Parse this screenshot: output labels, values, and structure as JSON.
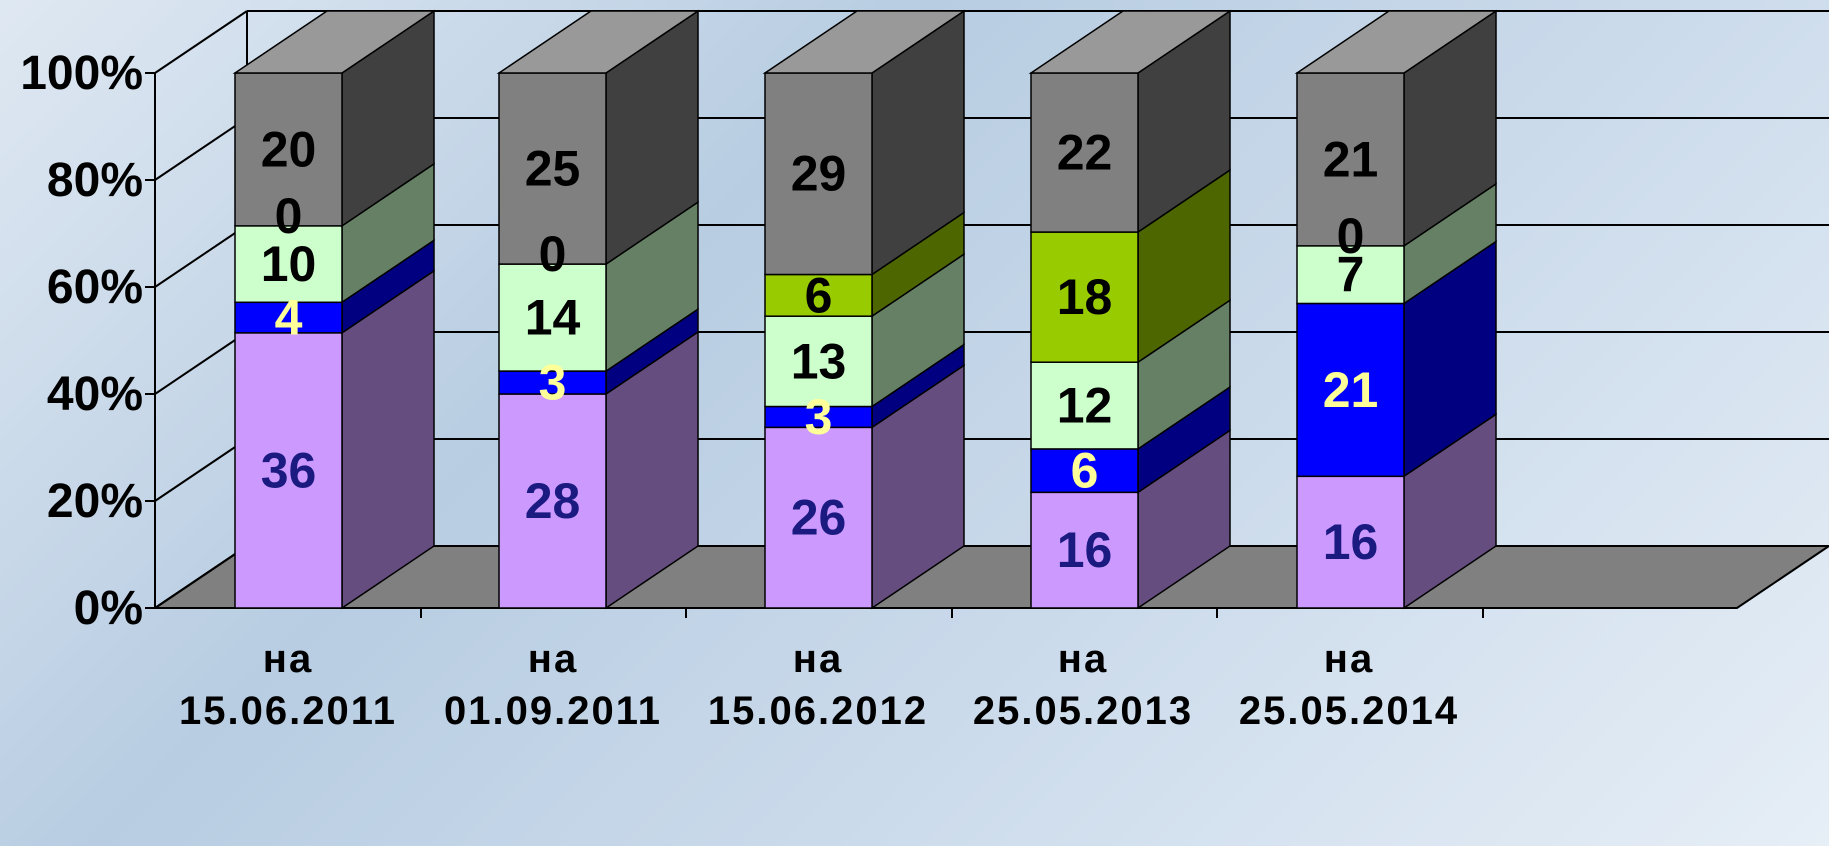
{
  "chart_data": {
    "type": "bar",
    "stacked": true,
    "percent": true,
    "three_d": true,
    "categories": [
      [
        "на",
        "15.06.2011"
      ],
      [
        "на",
        "01.09.2011"
      ],
      [
        "на",
        "15.06.2012"
      ],
      [
        "на",
        "25.05.2013"
      ],
      [
        "на",
        "25.05.2014"
      ]
    ],
    "yticks": [
      "0%",
      "20%",
      "40%",
      "60%",
      "80%",
      "100%"
    ],
    "ylim": [
      0,
      100
    ],
    "grid": true,
    "legend": "none",
    "series": [
      {
        "values": [
          36,
          28,
          26,
          16,
          16
        ],
        "color": "#cc99ff",
        "label_color": "#1a1a80"
      },
      {
        "values": [
          4,
          3,
          3,
          6,
          21
        ],
        "color": "#0000ff",
        "label_color": "#ffff99"
      },
      {
        "values": [
          10,
          14,
          13,
          12,
          7
        ],
        "color": "#ccffcc",
        "label_color": "#000000"
      },
      {
        "values": [
          0,
          0,
          0,
          0,
          0
        ],
        "color": "#99cc00",
        "label_color": "#000000"
      },
      {
        "values": [
          0,
          0,
          6,
          18,
          0
        ],
        "color": "#99cc00",
        "label_color": "#000000"
      },
      {
        "values": [
          20,
          25,
          29,
          22,
          21
        ],
        "color": "#808080",
        "label_color": "#000000"
      }
    ],
    "point_labels": [
      [
        "36",
        "28",
        "26",
        "16",
        "16"
      ],
      [
        "4",
        "3",
        "3",
        "6",
        "21"
      ],
      [
        "10",
        "14",
        "13",
        "12",
        "7"
      ],
      [
        "0",
        "0",
        "",
        "",
        "0"
      ],
      [
        "",
        "",
        "6",
        "18",
        ""
      ],
      [
        "20",
        "25",
        "29",
        "22",
        "21"
      ]
    ]
  }
}
